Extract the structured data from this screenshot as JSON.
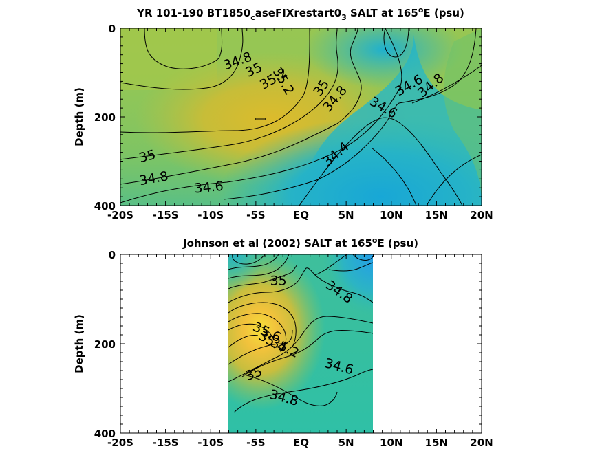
{
  "chart_data": [
    {
      "type": "heatmap",
      "title": {
        "pre": "YR 101-190 BT1850",
        "sub1": "c",
        "mid": "aseFIXrestart0",
        "sub2": "3",
        "post1": " SALT at 165",
        "sup": "o",
        "post2": "E (psu)"
      },
      "xlabel": "",
      "ylabel": "Depth (m)",
      "x_ticks": [
        "-20S",
        "-15S",
        "-10S",
        "-5S",
        "EQ",
        "5N",
        "10N",
        "15N",
        "20N"
      ],
      "y_ticks": [
        "0",
        "200",
        "400"
      ],
      "xlim": [
        -20,
        20
      ],
      "ylim": [
        0,
        400
      ],
      "contour_labels": [
        {
          "text": "34.8",
          "x": -7,
          "y": 75
        },
        {
          "text": "35",
          "x": -5.2,
          "y": 95
        },
        {
          "text": "35.2",
          "x": -3,
          "y": 115
        },
        {
          "text": "35.2",
          "x": -2,
          "y": 120
        },
        {
          "text": "35",
          "x": 2.3,
          "y": 135
        },
        {
          "text": "34.8",
          "x": 3.8,
          "y": 160
        },
        {
          "text": "34.6",
          "x": 12,
          "y": 130
        },
        {
          "text": "34.8",
          "x": 14.4,
          "y": 130
        },
        {
          "text": "34.6",
          "x": 9.1,
          "y": 180
        },
        {
          "text": "34.4",
          "x": 3.9,
          "y": 285
        },
        {
          "text": "35",
          "x": -17,
          "y": 290
        },
        {
          "text": "34.8",
          "x": -16.3,
          "y": 340
        },
        {
          "text": "34.6",
          "x": -10.2,
          "y": 360
        }
      ]
    },
    {
      "type": "heatmap",
      "title": {
        "pre": "Johnson et al (2002) SALT at 165",
        "sup": "o",
        "post": "E (psu)"
      },
      "xlabel": "",
      "ylabel": "Depth (m)",
      "x_ticks": [
        "-20S",
        "-15S",
        "-10S",
        "-5S",
        "EQ",
        "5N",
        "10N",
        "15N",
        "20N"
      ],
      "y_ticks": [
        "0",
        "200",
        "400"
      ],
      "xlim": [
        -20,
        20
      ],
      "ylim": [
        0,
        400
      ],
      "data_xrange": [
        -8,
        8
      ],
      "contour_labels": [
        {
          "text": "35",
          "x": -2.5,
          "y": 60
        },
        {
          "text": "34.8",
          "x": 4.2,
          "y": 85
        },
        {
          "text": "35.6",
          "x": -3.8,
          "y": 175
        },
        {
          "text": "35.4",
          "x": -3.2,
          "y": 197
        },
        {
          "text": "35.2",
          "x": -1.8,
          "y": 210
        },
        {
          "text": "35",
          "x": -5.2,
          "y": 268
        },
        {
          "text": "34.6",
          "x": 4.2,
          "y": 252
        },
        {
          "text": "34.8",
          "x": -1.9,
          "y": 322
        }
      ]
    }
  ]
}
